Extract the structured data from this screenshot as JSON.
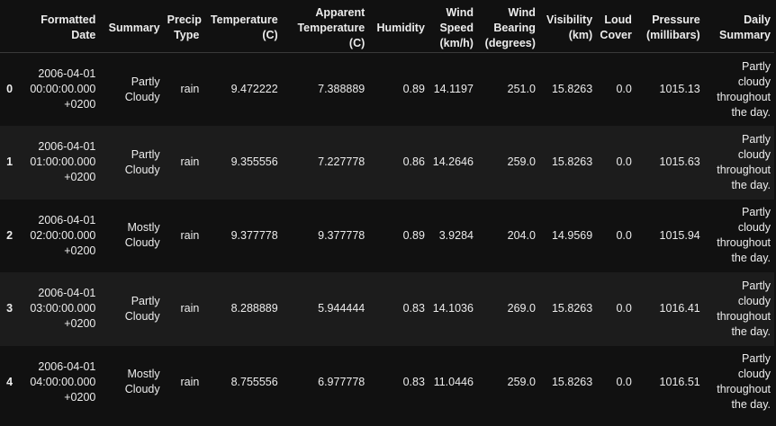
{
  "columns": [
    "",
    "Formatted Date",
    "Summary",
    "Precip Type",
    "Temperature (C)",
    "Apparent Temperature (C)",
    "Humidity",
    "Wind Speed (km/h)",
    "Wind Bearing (degrees)",
    "Visibility (km)",
    "Loud Cover",
    "Pressure (millibars)",
    "Daily Summary"
  ],
  "rows": [
    {
      "index": "0",
      "formatted_date": "2006-04-01 00:00:00.000 +0200",
      "summary": "Partly Cloudy",
      "precip_type": "rain",
      "temperature": "9.472222",
      "apparent_temperature": "7.388889",
      "humidity": "0.89",
      "wind_speed": "14.1197",
      "wind_bearing": "251.0",
      "visibility": "15.8263",
      "loud_cover": "0.0",
      "pressure": "1015.13",
      "daily_summary": "Partly cloudy throughout the day."
    },
    {
      "index": "1",
      "formatted_date": "2006-04-01 01:00:00.000 +0200",
      "summary": "Partly Cloudy",
      "precip_type": "rain",
      "temperature": "9.355556",
      "apparent_temperature": "7.227778",
      "humidity": "0.86",
      "wind_speed": "14.2646",
      "wind_bearing": "259.0",
      "visibility": "15.8263",
      "loud_cover": "0.0",
      "pressure": "1015.63",
      "daily_summary": "Partly cloudy throughout the day."
    },
    {
      "index": "2",
      "formatted_date": "2006-04-01 02:00:00.000 +0200",
      "summary": "Mostly Cloudy",
      "precip_type": "rain",
      "temperature": "9.377778",
      "apparent_temperature": "9.377778",
      "humidity": "0.89",
      "wind_speed": "3.9284",
      "wind_bearing": "204.0",
      "visibility": "14.9569",
      "loud_cover": "0.0",
      "pressure": "1015.94",
      "daily_summary": "Partly cloudy throughout the day."
    },
    {
      "index": "3",
      "formatted_date": "2006-04-01 03:00:00.000 +0200",
      "summary": "Partly Cloudy",
      "precip_type": "rain",
      "temperature": "8.288889",
      "apparent_temperature": "5.944444",
      "humidity": "0.83",
      "wind_speed": "14.1036",
      "wind_bearing": "269.0",
      "visibility": "15.8263",
      "loud_cover": "0.0",
      "pressure": "1016.41",
      "daily_summary": "Partly cloudy throughout the day."
    },
    {
      "index": "4",
      "formatted_date": "2006-04-01 04:00:00.000 +0200",
      "summary": "Mostly Cloudy",
      "precip_type": "rain",
      "temperature": "8.755556",
      "apparent_temperature": "6.977778",
      "humidity": "0.83",
      "wind_speed": "11.0446",
      "wind_bearing": "259.0",
      "visibility": "15.8263",
      "loud_cover": "0.0",
      "pressure": "1016.51",
      "daily_summary": "Partly cloudy throughout the day."
    }
  ],
  "colors": {
    "background": "#111111",
    "row_alt": "#1c1c1c",
    "text": "#ececec"
  }
}
